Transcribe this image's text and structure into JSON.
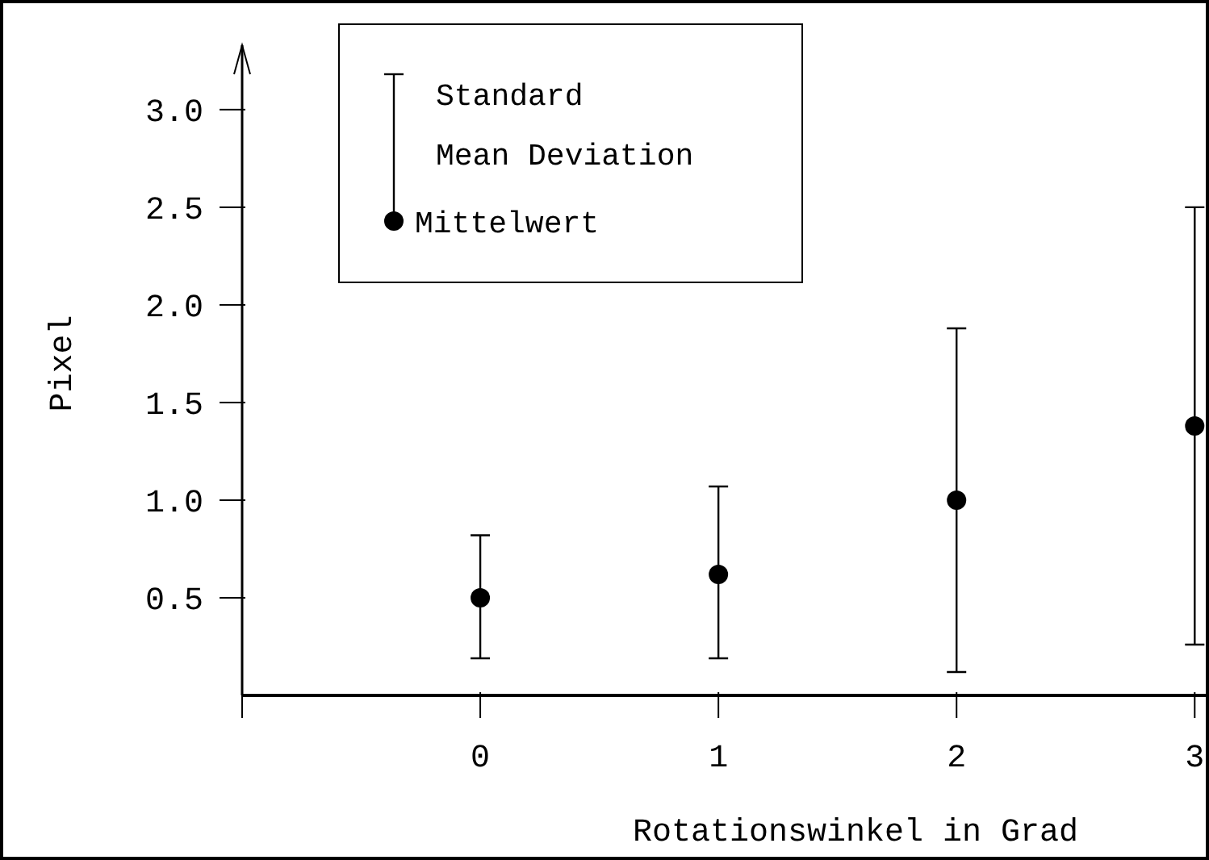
{
  "chart_data": {
    "type": "scatter",
    "xlabel": "Rotationswinkel in Grad",
    "ylabel": "Pixel",
    "x": [
      0,
      1,
      2,
      3
    ],
    "series": [
      {
        "name": "Mittelwert",
        "color": "#000000",
        "values": [
          0.5,
          0.62,
          1.0,
          1.38
        ],
        "errors": [
          [
            0.19,
            0.82
          ],
          [
            0.19,
            1.07
          ],
          [
            0.12,
            1.88
          ],
          [
            0.26,
            2.5
          ]
        ]
      }
    ],
    "xlim": [
      -1,
      3.06
    ],
    "ylim": [
      0,
      3.33
    ],
    "xticks": [
      {
        "value": -1,
        "label": null
      },
      0,
      1,
      2,
      3
    ],
    "yticks": [
      0.5,
      {
        "value": 1,
        "label": "1.0"
      },
      1.5,
      {
        "value": 2,
        "label": "2.0"
      },
      2.5,
      {
        "value": 3,
        "label": "3.0"
      }
    ],
    "annotations": [
      "Standard Mean Deviation"
    ],
    "marker": "circle",
    "legend": "top left",
    "grid": false
  }
}
